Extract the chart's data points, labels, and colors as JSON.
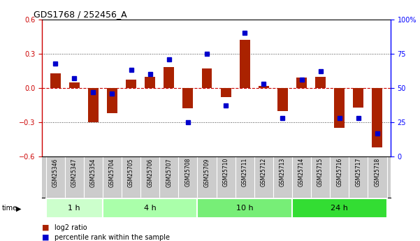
{
  "title": "GDS1768 / 252456_A",
  "samples": [
    "GSM25346",
    "GSM25347",
    "GSM25354",
    "GSM25704",
    "GSM25705",
    "GSM25706",
    "GSM25707",
    "GSM25708",
    "GSM25709",
    "GSM25710",
    "GSM25711",
    "GSM25712",
    "GSM25713",
    "GSM25714",
    "GSM25715",
    "GSM25716",
    "GSM25717",
    "GSM25718"
  ],
  "log2_ratio": [
    0.13,
    0.05,
    -0.3,
    -0.22,
    0.07,
    0.1,
    0.18,
    -0.18,
    0.17,
    -0.08,
    0.42,
    0.02,
    -0.2,
    0.09,
    0.1,
    -0.35,
    -0.17,
    -0.52
  ],
  "percentile_rank": [
    68,
    57,
    47,
    46,
    63,
    60,
    71,
    25,
    75,
    37,
    90,
    53,
    28,
    56,
    62,
    28,
    28,
    17
  ],
  "groups": [
    {
      "label": "1 h",
      "start": 0,
      "end": 3
    },
    {
      "label": "4 h",
      "start": 3,
      "end": 8
    },
    {
      "label": "10 h",
      "start": 8,
      "end": 13
    },
    {
      "label": "24 h",
      "start": 13,
      "end": 18
    }
  ],
  "group_colors": [
    "#ccffcc",
    "#aaffaa",
    "#77ee77",
    "#33dd33"
  ],
  "bar_color": "#aa2200",
  "dot_color": "#0000cc",
  "left_ylim": [
    -0.6,
    0.6
  ],
  "right_ylim": [
    0,
    100
  ],
  "left_yticks": [
    -0.6,
    -0.3,
    0.0,
    0.3,
    0.6
  ],
  "right_yticks": [
    0,
    25,
    50,
    75,
    100
  ],
  "hline_red_color": "#cc0000",
  "dotted_color": "#444444",
  "sample_strip_color": "#cccccc",
  "background_color": "#ffffff"
}
